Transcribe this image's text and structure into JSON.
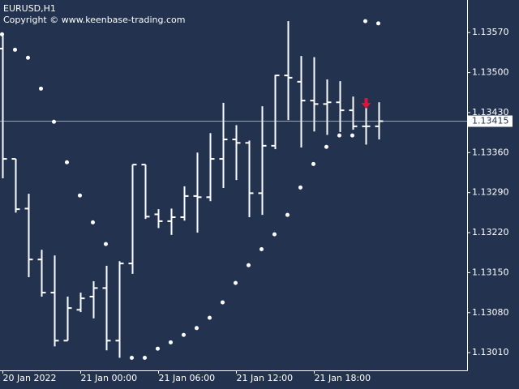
{
  "chart_data": {
    "type": "ohlc",
    "title": "EURUSD,H1",
    "subtitle": "Copyright © www.keenbase-trading.com",
    "categories": [
      "20 Jan 2022",
      null,
      null,
      null,
      null,
      null,
      "21 Jan 00:00",
      null,
      null,
      null,
      null,
      null,
      "21 Jan 06:00",
      null,
      null,
      null,
      null,
      null,
      "21 Jan 12:00",
      null,
      null,
      null,
      null,
      null,
      "21 Jan 18:00",
      null,
      null,
      null,
      null,
      null
    ],
    "open": [
      1.13542,
      1.13349,
      1.13262,
      1.13173,
      1.13115,
      1.13031,
      1.13085,
      1.13108,
      1.13123,
      1.13031,
      1.13166,
      1.13339,
      1.13252,
      1.1324,
      1.13247,
      1.13284,
      1.13282,
      1.13349,
      1.13383,
      1.13377,
      1.13289,
      1.13372,
      1.13495,
      1.13484,
      1.13451,
      1.13445,
      1.13448,
      1.13434,
      1.13406,
      1.13406
    ],
    "high": [
      1.13567,
      1.13349,
      1.13288,
      1.1319,
      1.1318,
      1.13108,
      1.13115,
      1.13135,
      1.13162,
      1.1317,
      1.13339,
      1.13339,
      1.13261,
      1.13262,
      1.13301,
      1.1336,
      1.13394,
      1.13447,
      1.13408,
      1.13381,
      1.13441,
      1.13496,
      1.1359,
      1.13529,
      1.13527,
      1.13488,
      1.13485,
      1.13458,
      1.13447,
      1.13448
    ],
    "low": [
      1.13315,
      1.13255,
      1.13142,
      1.13108,
      1.13021,
      1.13031,
      1.13081,
      1.1307,
      1.13014,
      1.13001,
      1.13148,
      1.13244,
      1.13228,
      1.13216,
      1.13241,
      1.1322,
      1.13275,
      1.13298,
      1.13312,
      1.13247,
      1.13251,
      1.13366,
      1.13417,
      1.13369,
      1.13397,
      1.13391,
      1.13396,
      1.134,
      1.13374,
      1.13383
    ],
    "close": [
      1.13349,
      1.13261,
      1.13173,
      1.13115,
      1.13031,
      1.13088,
      1.13105,
      1.13123,
      1.13031,
      1.13166,
      1.13339,
      1.13248,
      1.1324,
      1.13247,
      1.13284,
      1.13282,
      1.13349,
      1.13383,
      1.13377,
      1.13289,
      1.13372,
      1.13495,
      1.13491,
      1.13451,
      1.13445,
      1.13448,
      1.13434,
      1.13406,
      1.13406,
      1.13415
    ],
    "sar": [
      1.13567,
      1.1354,
      1.13526,
      1.13472,
      1.13414,
      1.13343,
      1.13285,
      1.13238,
      1.132,
      null,
      1.13001,
      1.13001,
      1.13017,
      1.13028,
      1.13041,
      1.13053,
      1.13071,
      1.13098,
      1.13132,
      1.13163,
      1.13191,
      1.13217,
      1.13251,
      1.13299,
      1.1334,
      1.1337,
      1.1339,
      1.1339,
      1.1359,
      1.13586
    ],
    "arrow": [
      null,
      null,
      null,
      null,
      null,
      null,
      null,
      null,
      null,
      null,
      null,
      null,
      null,
      null,
      null,
      null,
      null,
      null,
      null,
      null,
      null,
      null,
      null,
      null,
      null,
      null,
      null,
      null,
      1.13447,
      null
    ],
    "last_price": 1.13415,
    "color": "#ffffff",
    "arrow_color": "#dc143c",
    "last_price_color": "#9aa3b2",
    "ylim": [
      1.12979,
      1.13627
    ],
    "yticks": [
      {
        "value": 1.1301,
        "label": "1.13010"
      },
      {
        "value": 1.1308,
        "label": "1.13080"
      },
      {
        "value": 1.1315,
        "label": "1.13150"
      },
      {
        "value": 1.1322,
        "label": "1.13220"
      },
      {
        "value": 1.1329,
        "label": "1.13290"
      },
      {
        "value": 1.1336,
        "label": "1.13360"
      },
      {
        "value": 1.1343,
        "label": "1.13430"
      },
      {
        "value": 1.135,
        "label": "1.13500"
      },
      {
        "value": 1.1357,
        "label": "1.13570"
      }
    ],
    "grid": false
  }
}
